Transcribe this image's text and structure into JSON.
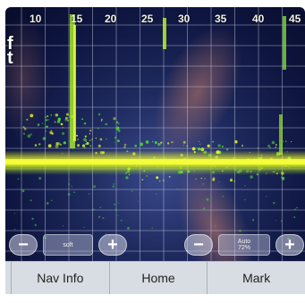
{
  "depth_scale": [
    "10",
    "15",
    "20",
    "25",
    "30",
    "35",
    "40",
    "45"
  ],
  "unit": [
    "f",
    "t"
  ],
  "controls": {
    "left": {
      "minus": "−",
      "plus": "+",
      "mode": [
        "",
        "soft"
      ]
    },
    "right": {
      "minus": "−",
      "plus": "+",
      "mode": [
        "Auto",
        "72%"
      ]
    }
  },
  "tabs": {
    "nav_info": "Nav Info",
    "home": "Home",
    "mark": "Mark"
  },
  "colors": {
    "return_yellow": "#e4f021",
    "return_green": "#4fd838",
    "grid": "#c9cfe3"
  }
}
